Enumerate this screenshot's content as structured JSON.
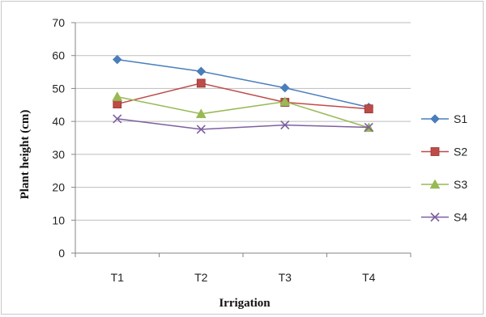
{
  "chart_data": {
    "type": "line",
    "xlabel": "Irrigation",
    "ylabel": "Plant  height (cm)",
    "categories": [
      "T1",
      "T2",
      "T3",
      "T4"
    ],
    "ylim": [
      0,
      70
    ],
    "yticks": [
      0,
      10,
      20,
      30,
      40,
      50,
      60,
      70
    ],
    "grid": "horizontal",
    "legend_position": "right",
    "series": [
      {
        "name": "S1",
        "values": [
          58.8,
          55.2,
          50.2,
          44.3
        ],
        "color": "#4a7ebb",
        "marker": "diamond"
      },
      {
        "name": "S2",
        "values": [
          45.3,
          51.6,
          45.8,
          43.8
        ],
        "color": "#be4b48",
        "marker": "square"
      },
      {
        "name": "S3",
        "values": [
          47.5,
          42.3,
          46.0,
          38.1
        ],
        "color": "#98b954",
        "marker": "triangle"
      },
      {
        "name": "S4",
        "values": [
          40.8,
          37.6,
          38.9,
          38.2
        ],
        "color": "#7d60a0",
        "marker": "x"
      }
    ]
  }
}
